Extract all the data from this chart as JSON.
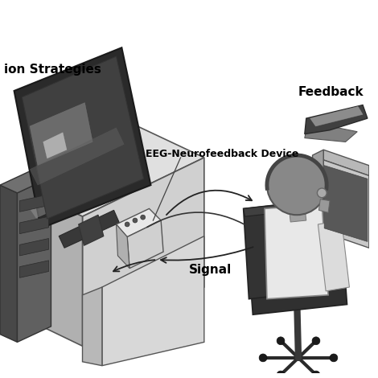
{
  "bg_color": "#ffffff",
  "label_eeg": "EEG-Neurofeedback Device",
  "label_signal": "Signal",
  "label_feedback": "Feedback",
  "label_strategies": "ion Strategies",
  "text_color": "#000000",
  "arrow_color": "#333333",
  "desk_top_color": "#e0e0e0",
  "desk_front_color": "#d0d0d0",
  "desk_left_color": "#b8b8b8",
  "desk_panel_front": "#dcdcdc",
  "desk_panel_left": "#c8c8c8",
  "monitor_frame_color": "#303030",
  "monitor_screen_color": "#383838",
  "tower_dark": "#3a3a3a",
  "tower_front": "#505050",
  "eeg_top": "#e8e8e8",
  "eeg_front": "#d0d0d0",
  "eeg_side": "#b8b8b8",
  "chair_dark": "#282828",
  "chair_mid": "#404040",
  "person_body": "#e8e8e8",
  "person_head": "#888888",
  "fb_monitor_color": "#c0c0c0",
  "fb_screen_color": "#606060",
  "swoosh_dark": "#404040",
  "swoosh_light": "#909090"
}
